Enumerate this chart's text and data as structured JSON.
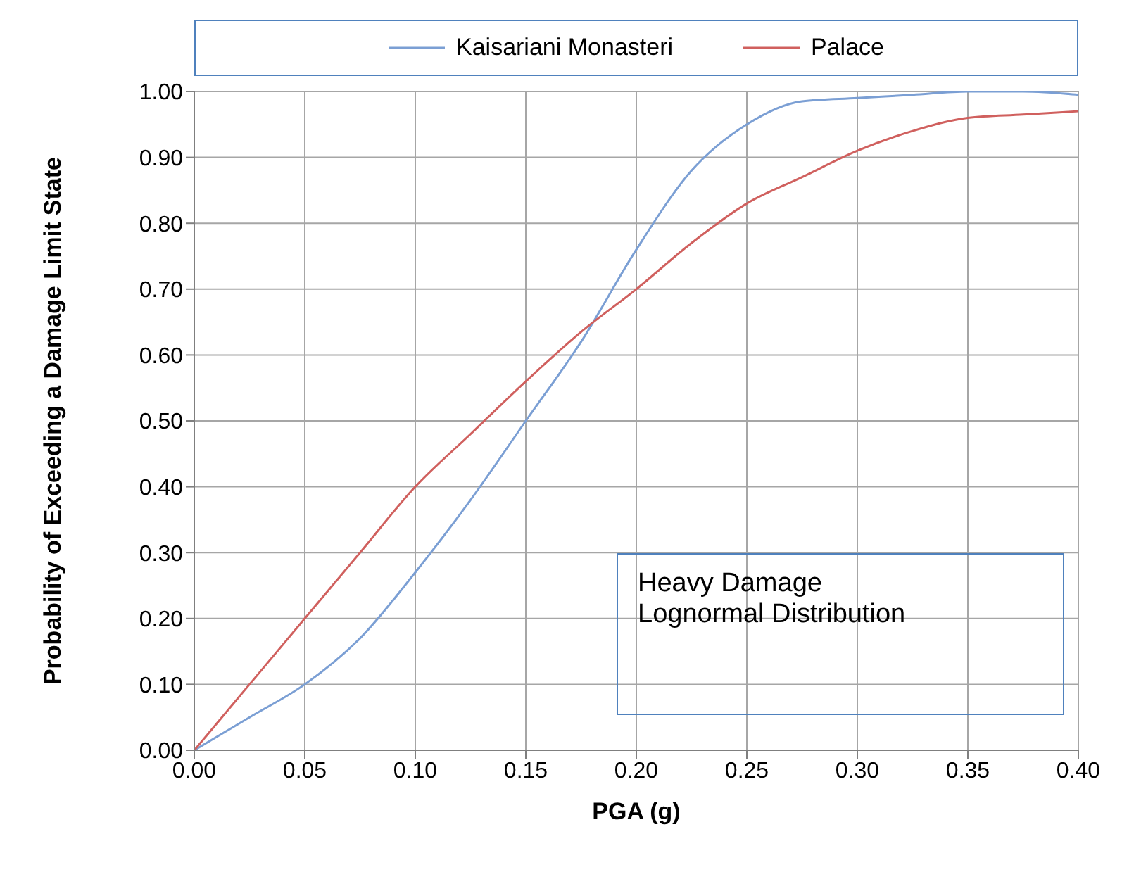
{
  "chart_data": {
    "type": "line",
    "xlabel": "PGA (g)",
    "ylabel": "Probability of Exceeding a Damage Limit State",
    "annotations": [
      "Heavy Damage",
      "Lognormal Distribution"
    ],
    "x": [
      0,
      0.025,
      0.05,
      0.075,
      0.1,
      0.125,
      0.15,
      0.175,
      0.2,
      0.225,
      0.25,
      0.275,
      0.3,
      0.325,
      0.35,
      0.375,
      0.4
    ],
    "series": [
      {
        "name": "Kaisariani Monasteri",
        "color": "#7b9fd4",
        "values": [
          0,
          0.05,
          0.1,
          0.17,
          0.27,
          0.38,
          0.5,
          0.62,
          0.76,
          0.88,
          0.95,
          0.985,
          0.99,
          0.995,
          1.0,
          1.0,
          0.995
        ]
      },
      {
        "name": "Palace",
        "color": "#d0605e",
        "values": [
          0,
          0.1,
          0.2,
          0.3,
          0.4,
          0.48,
          0.56,
          0.635,
          0.7,
          0.77,
          0.83,
          0.87,
          0.91,
          0.94,
          0.96,
          0.965,
          0.97
        ]
      }
    ],
    "xlim": [
      0,
      0.4
    ],
    "xticks": [
      {
        "value": 0,
        "label": "0.00"
      },
      {
        "value": 0.05,
        "label": "0.05"
      },
      {
        "value": 0.1,
        "label": "0.10"
      },
      {
        "value": 0.15,
        "label": "0.15"
      },
      {
        "value": 0.2,
        "label": "0.20"
      },
      {
        "value": 0.25,
        "label": "0.25"
      },
      {
        "value": 0.3,
        "label": "0.30"
      },
      {
        "value": 0.35,
        "label": "0.35"
      },
      {
        "value": 0.4,
        "label": "0.40"
      }
    ],
    "ylim": [
      0,
      1
    ],
    "yticks": [
      {
        "value": 0,
        "label": "0.00"
      },
      {
        "value": 0.1,
        "label": "0.10"
      },
      {
        "value": 0.2,
        "label": "0.20"
      },
      {
        "value": 0.3,
        "label": "0.30"
      },
      {
        "value": 0.4,
        "label": "0.40"
      },
      {
        "value": 0.5,
        "label": "0.50"
      },
      {
        "value": 0.6,
        "label": "0.60"
      },
      {
        "value": 0.7,
        "label": "0.70"
      },
      {
        "value": 0.8,
        "label": "0.80"
      },
      {
        "value": 0.9,
        "label": "0.90"
      },
      {
        "value": 1,
        "label": "1.00"
      }
    ],
    "grid": true,
    "legend": "top",
    "marker": "none",
    "line_style": "solid"
  }
}
